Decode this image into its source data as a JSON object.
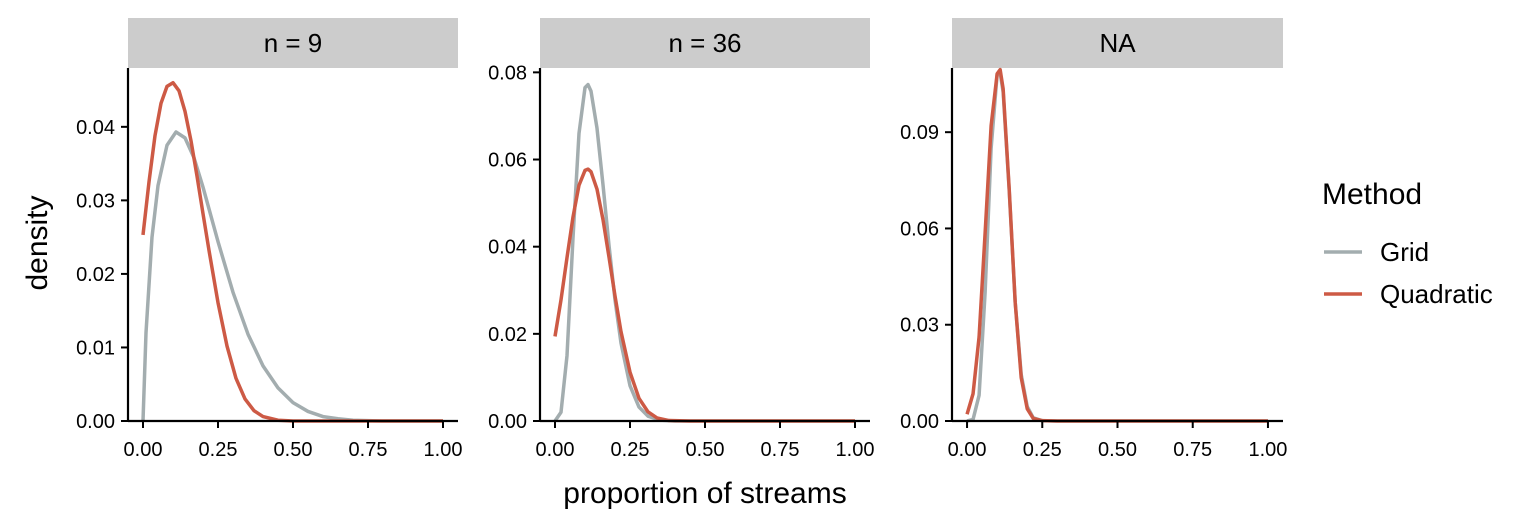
{
  "chart_data": {
    "type": "line",
    "xlabel": "proportion of streams",
    "ylabel": "density",
    "legend": {
      "title": "Method",
      "position": "right",
      "entries": [
        {
          "name": "Grid",
          "color": "#A3ADAF"
        },
        {
          "name": "Quadratic",
          "color": "#CD5A45"
        }
      ]
    },
    "x_ticks": [
      0.0,
      0.25,
      0.5,
      0.75,
      1.0
    ],
    "x_tick_labels": [
      "0.00",
      "0.25",
      "0.50",
      "0.75",
      "1.00"
    ],
    "xlim": [
      -0.05,
      1.05
    ],
    "panels": [
      {
        "strip": "n = 9",
        "ylim": [
          0,
          0.048
        ],
        "y_ticks": [
          0,
          0.01,
          0.02,
          0.03,
          0.04
        ],
        "y_tick_labels": [
          "0.00",
          "0.01",
          "0.02",
          "0.03",
          "0.04"
        ],
        "series": [
          {
            "name": "Grid",
            "x": [
              0,
              0.01,
              0.03,
              0.05,
              0.08,
              0.11,
              0.14,
              0.17,
              0.2,
              0.25,
              0.3,
              0.35,
              0.4,
              0.45,
              0.5,
              0.55,
              0.6,
              0.65,
              0.7,
              0.8,
              0.9,
              1.0
            ],
            "y": [
              0.0,
              0.012,
              0.025,
              0.032,
              0.0375,
              0.0393,
              0.0385,
              0.0358,
              0.0318,
              0.0244,
              0.0175,
              0.0118,
              0.0075,
              0.0045,
              0.0025,
              0.0013,
              0.0006,
              0.0003,
              0.0001,
              0.0,
              0.0,
              0.0
            ]
          },
          {
            "name": "Quadratic",
            "x": [
              0,
              0.02,
              0.04,
              0.06,
              0.08,
              0.1,
              0.12,
              0.14,
              0.16,
              0.18,
              0.2,
              0.22,
              0.25,
              0.28,
              0.31,
              0.34,
              0.37,
              0.4,
              0.45,
              0.5,
              0.6,
              0.7,
              0.8,
              1.0
            ],
            "y": [
              0.0253,
              0.0325,
              0.0388,
              0.0432,
              0.0455,
              0.046,
              0.0449,
              0.0421,
              0.0381,
              0.0333,
              0.0282,
              0.0232,
              0.0161,
              0.0102,
              0.0058,
              0.003,
              0.0014,
              0.0006,
              0.0001,
              0.0,
              0.0,
              0.0,
              0.0,
              0.0
            ]
          }
        ]
      },
      {
        "strip": "n = 36",
        "ylim": [
          0,
          0.081
        ],
        "y_ticks": [
          0,
          0.02,
          0.04,
          0.06,
          0.08
        ],
        "y_tick_labels": [
          "0.00",
          "0.02",
          "0.04",
          "0.06",
          "0.08"
        ],
        "series": [
          {
            "name": "Grid",
            "x": [
              0,
              0.02,
              0.04,
              0.06,
              0.08,
              0.1,
              0.11,
              0.12,
              0.14,
              0.16,
              0.18,
              0.2,
              0.22,
              0.25,
              0.28,
              0.31,
              0.35,
              0.4,
              0.5,
              0.7,
              1.0
            ],
            "y": [
              0.0,
              0.002,
              0.015,
              0.042,
              0.066,
              0.0765,
              0.0772,
              0.0757,
              0.0672,
              0.0542,
              0.0403,
              0.0278,
              0.0179,
              0.0081,
              0.0032,
              0.0011,
              0.0002,
              0.0,
              0.0,
              0.0,
              0.0
            ]
          },
          {
            "name": "Quadratic",
            "x": [
              0,
              0.02,
              0.04,
              0.06,
              0.08,
              0.1,
              0.11,
              0.12,
              0.14,
              0.16,
              0.18,
              0.2,
              0.22,
              0.25,
              0.28,
              0.31,
              0.34,
              0.38,
              0.45,
              0.6,
              1.0
            ],
            "y": [
              0.0194,
              0.0278,
              0.0375,
              0.0468,
              0.0541,
              0.0575,
              0.0578,
              0.0572,
              0.0532,
              0.0462,
              0.0376,
              0.0287,
              0.0205,
              0.0112,
              0.0052,
              0.0021,
              0.0007,
              0.0001,
              0.0,
              0.0,
              0.0
            ]
          }
        ]
      },
      {
        "strip": "NA",
        "ylim": [
          0,
          0.11
        ],
        "y_ticks": [
          0,
          0.03,
          0.06,
          0.09
        ],
        "y_tick_labels": [
          "0.00",
          "0.03",
          "0.06",
          "0.09"
        ],
        "series": [
          {
            "name": "Grid",
            "x": [
              0,
              0.02,
              0.04,
              0.06,
              0.08,
              0.1,
              0.11,
              0.12,
              0.14,
              0.16,
              0.18,
              0.2,
              0.22,
              0.25,
              0.3,
              0.4,
              1.0
            ],
            "y": [
              0.0,
              0.0005,
              0.008,
              0.04,
              0.085,
              0.108,
              0.1085,
              0.1025,
              0.072,
              0.037,
              0.0145,
              0.0045,
              0.001,
              0.0001,
              0.0,
              0.0,
              0.0
            ]
          },
          {
            "name": "Quadratic",
            "x": [
              0,
              0.02,
              0.04,
              0.06,
              0.08,
              0.1,
              0.11,
              0.12,
              0.14,
              0.16,
              0.18,
              0.2,
              0.22,
              0.25,
              0.3,
              0.4,
              1.0
            ],
            "y": [
              0.0021,
              0.0085,
              0.0262,
              0.0585,
              0.092,
              0.1082,
              0.1095,
              0.1035,
              0.0725,
              0.037,
              0.0135,
              0.0038,
              0.0008,
              0.0001,
              0.0,
              0.0,
              0.0
            ]
          }
        ]
      }
    ]
  }
}
